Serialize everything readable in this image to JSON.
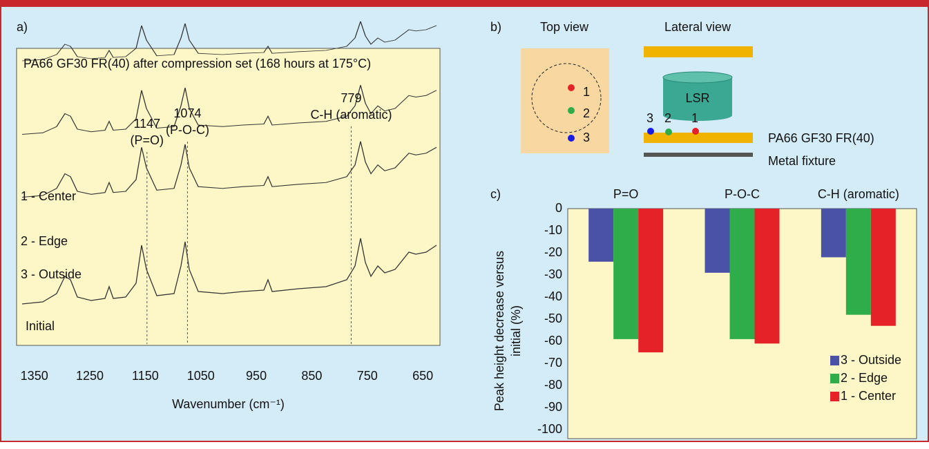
{
  "panel_labels": {
    "a": "a)",
    "b": "b)",
    "c": "c)"
  },
  "diagram": {
    "top_view": "Top view",
    "lateral_view": "Lateral view",
    "top_points": [
      "1",
      "2",
      "3"
    ],
    "lateral_points": [
      "3",
      "2",
      "1"
    ],
    "cylinder": "LSR",
    "plate": "PA66 GF30 FR(40)",
    "fixture": "Metal fixture"
  },
  "chart_data": [
    {
      "type": "spectrum",
      "title": "PA66 GF30 FR(40) after compression set (168 hours at 175°C)",
      "x_label": "Wavenumber (cm⁻¹)",
      "xlim": [
        1382,
        619
      ],
      "xticks": [
        1350,
        1250,
        1150,
        1050,
        950,
        850,
        750,
        650
      ],
      "trace_labels": [
        "1 - Center",
        "2 - Edge",
        "3 - Outside",
        "Initial"
      ],
      "annotations": [
        {
          "value": 1147,
          "label": "1147",
          "note": "(P=O)"
        },
        {
          "value": 1074,
          "label": "1074",
          "note": "(P-O-C)"
        },
        {
          "value": 779,
          "label": "779",
          "note": "C-H (aromatic)"
        }
      ]
    },
    {
      "type": "bar",
      "y_label": "Peak height decrease versus initial (%)",
      "categories": [
        "P=O",
        "P-O-C",
        "C-H (aromatic)"
      ],
      "series": [
        {
          "name": "3 - Outside",
          "color": "#4a52a8",
          "values": [
            -24,
            -29,
            -22
          ]
        },
        {
          "name": "2 - Edge",
          "color": "#2fad4a",
          "values": [
            -59,
            -59,
            -48
          ]
        },
        {
          "name": "1 - Center",
          "color": "#e52228",
          "values": [
            -65,
            -61,
            -53
          ]
        }
      ],
      "ylim": [
        -104,
        0
      ],
      "yticks": [
        0,
        -10,
        -20,
        -30,
        -40,
        -50,
        -60,
        -70,
        -80,
        -90,
        -100
      ],
      "legend": "lower right"
    }
  ]
}
